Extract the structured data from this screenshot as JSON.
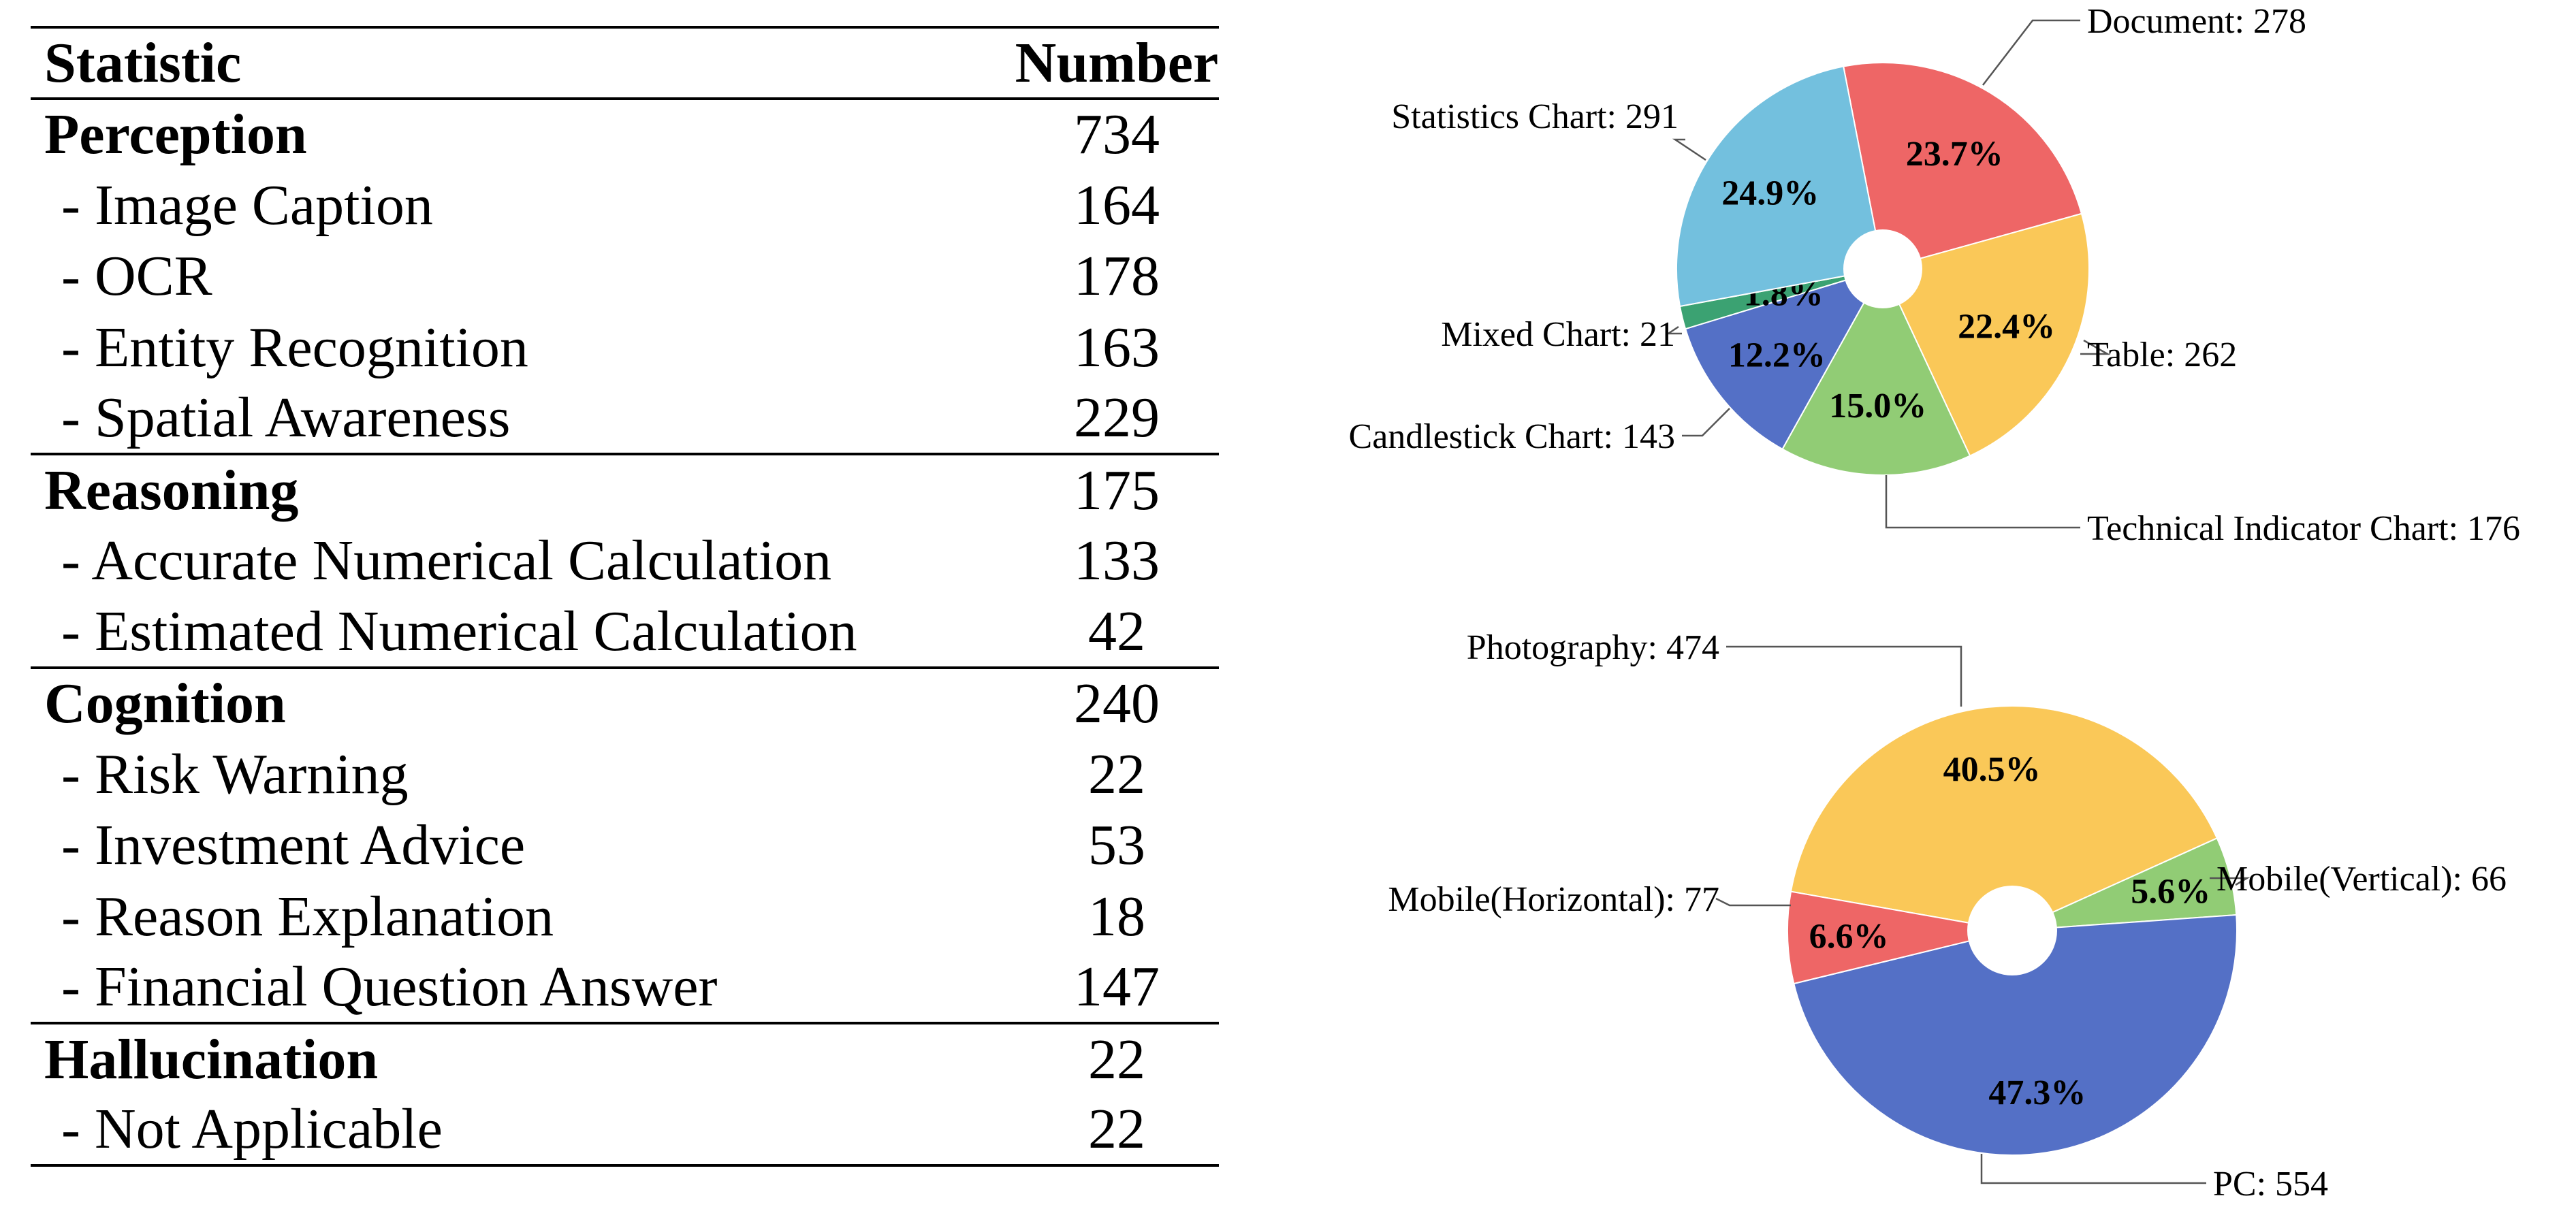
{
  "table": {
    "headers": {
      "statistic": "Statistic",
      "number": "Number"
    },
    "rows": [
      {
        "label": "Perception",
        "value": "734",
        "kind": "group"
      },
      {
        "label": "- Image Caption",
        "value": "164",
        "kind": "sub"
      },
      {
        "label": "- OCR",
        "value": "178",
        "kind": "sub"
      },
      {
        "label": "- Entity Recognition",
        "value": "163",
        "kind": "sub"
      },
      {
        "label": "- Spatial Awareness",
        "value": "229",
        "kind": "sub"
      },
      {
        "label": "Reasoning",
        "value": "175",
        "kind": "group"
      },
      {
        "label": "- Accurate Numerical Calculation",
        "value": "133",
        "kind": "sub"
      },
      {
        "label": "- Estimated Numerical Calculation",
        "value": "42",
        "kind": "sub"
      },
      {
        "label": "Cognition",
        "value": "240",
        "kind": "group"
      },
      {
        "label": "- Risk Warning",
        "value": "22",
        "kind": "sub"
      },
      {
        "label": "- Investment Advice",
        "value": "53",
        "kind": "sub"
      },
      {
        "label": "- Reason Explanation",
        "value": "18",
        "kind": "sub"
      },
      {
        "label": "- Financial Question Answer",
        "value": "147",
        "kind": "sub"
      },
      {
        "label": "Hallucination",
        "value": "22",
        "kind": "group"
      },
      {
        "label": "- Not Applicable",
        "value": "22",
        "kind": "sub"
      }
    ]
  },
  "chart_data": [
    {
      "type": "pie",
      "donut": true,
      "slices": [
        {
          "name": "Document",
          "value": 278,
          "percent": "23.7%",
          "label": "Document: 278",
          "color": "#ee6666"
        },
        {
          "name": "Table",
          "value": 262,
          "percent": "22.4%",
          "label": "Table: 262",
          "color": "#fac858"
        },
        {
          "name": "Technical Indicator Chart",
          "value": 176,
          "percent": "15.0%",
          "label": "Technical Indicator Chart: 176",
          "color": "#91cc75"
        },
        {
          "name": "Candlestick Chart",
          "value": 143,
          "percent": "12.2%",
          "label": "Candlestick Chart: 143",
          "color": "#5470c6"
        },
        {
          "name": "Mixed Chart",
          "value": 21,
          "percent": "1.8%",
          "label": "Mixed Chart: 21",
          "color": "#3ba272"
        },
        {
          "name": "Statistics Chart",
          "value": 291,
          "percent": "24.9%",
          "label": "Statistics Chart: 291",
          "color": "#73c0de"
        }
      ]
    },
    {
      "type": "pie",
      "donut": true,
      "slices": [
        {
          "name": "Photography",
          "value": 474,
          "percent": "40.5%",
          "label": "Photography: 474",
          "color": "#fac858"
        },
        {
          "name": "Mobile(Vertical)",
          "value": 66,
          "percent": "5.6%",
          "label": "Mobile(Vertical): 66",
          "color": "#91cc75"
        },
        {
          "name": "PC",
          "value": 554,
          "percent": "47.3%",
          "label": "PC: 554",
          "color": "#5470c6"
        },
        {
          "name": "Mobile(Horizontal)",
          "value": 77,
          "percent": "6.6%",
          "label": "Mobile(Horizontal): 77",
          "color": "#ee6666"
        }
      ]
    }
  ]
}
